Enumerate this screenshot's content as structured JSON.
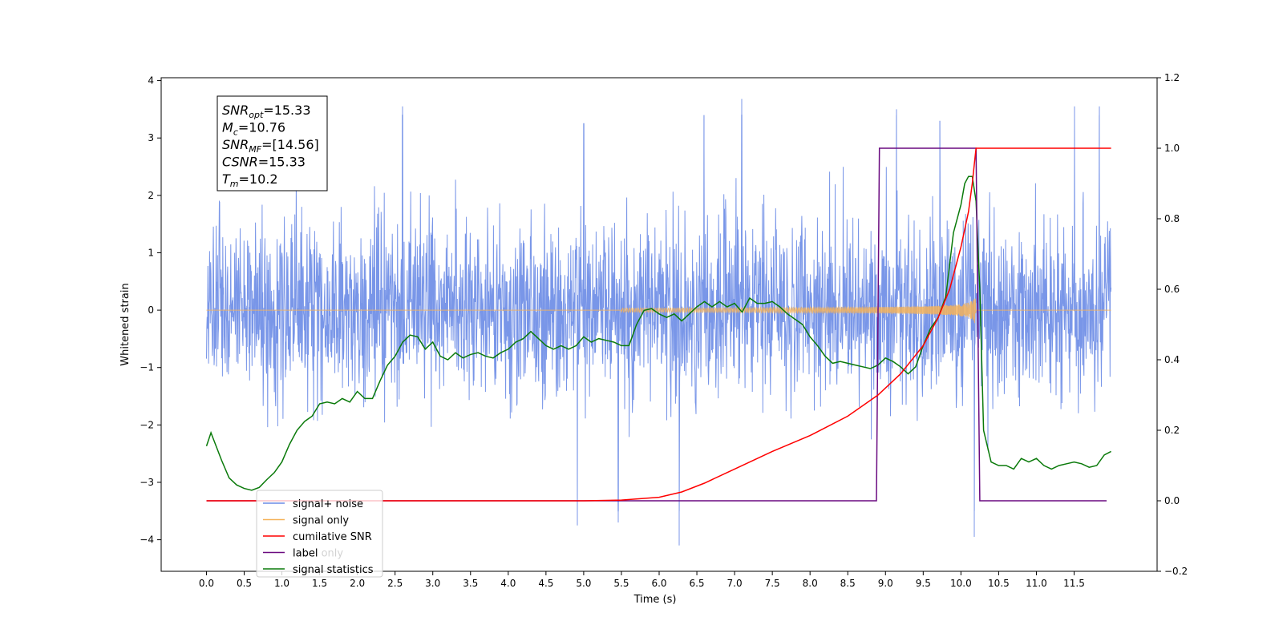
{
  "chart_data": {
    "type": "line",
    "xlabel": "Time (s)",
    "ylabel": "Whitened strain",
    "xlim": [
      -0.6,
      12.6
    ],
    "ylim": [
      -4.55,
      4.05
    ],
    "y2lim": [
      -0.2,
      1.2
    ],
    "x_ticks": [
      "0.0",
      "0.5",
      "1.0",
      "1.5",
      "2.0",
      "2.5",
      "3.0",
      "3.5",
      "4.0",
      "4.5",
      "5.0",
      "5.5",
      "6.0",
      "6.5",
      "7.0",
      "7.5",
      "8.0",
      "8.5",
      "9.0",
      "9.5",
      "10.0",
      "10.5",
      "11.0",
      "11.5"
    ],
    "y_ticks": [
      "4",
      "3",
      "2",
      "1",
      "0",
      "−1",
      "−2",
      "−3",
      "−4"
    ],
    "y2_ticks": [
      "1.2",
      "1.0",
      "0.8",
      "0.6",
      "0.4",
      "0.2",
      "0.0",
      "−0.2"
    ],
    "legend": {
      "placement": "lower-left",
      "entries": [
        "signal+ noise",
        "signal only",
        "cumilative SNR",
        "label",
        "signal statistics"
      ],
      "ghost_entries": [
        "",
        "",
        "",
        "label only",
        "signal statistics"
      ]
    },
    "annotation": {
      "lines": [
        {
          "base": "SNR",
          "sub": "opt",
          "value": "=15.33"
        },
        {
          "base": "M",
          "sub": "c",
          "value": "=10.76"
        },
        {
          "base": "SNR",
          "sub": "MF",
          "value": "=[14.56]"
        },
        {
          "base": "CSNR",
          "sub": "",
          "value": "=15.33"
        },
        {
          "base": "T",
          "sub": "m",
          "value": "=10.2"
        }
      ]
    },
    "colors": {
      "noise": "#6a8be6",
      "signal": "#f5b35a",
      "csnr": "#ff0000",
      "label": "#6a0a80",
      "stats": "#0a7a0a"
    },
    "series": [
      {
        "name": "signal+ noise",
        "axis": "left",
        "noise_std": 0.78,
        "x_range": [
          0.0,
          11.99
        ],
        "spikes": [
          {
            "x": 4.92,
            "y": -3.75
          },
          {
            "x": 5.46,
            "y": -3.7
          },
          {
            "x": 6.27,
            "y": -4.1
          },
          {
            "x": 10.18,
            "y": -3.95
          },
          {
            "x": 7.1,
            "y": 3.68
          },
          {
            "x": 2.6,
            "y": 3.55
          },
          {
            "x": 9.15,
            "y": 3.5
          },
          {
            "x": 11.5,
            "y": 3.55
          },
          {
            "x": 11.83,
            "y": 3.55
          },
          {
            "x": 5.0,
            "y": 3.25
          },
          {
            "x": 6.6,
            "y": 3.4
          },
          {
            "x": 9.72,
            "y": 3.3
          }
        ]
      },
      {
        "name": "signal only",
        "axis": "left",
        "t_merger": 10.2,
        "t_start": 5.5
      },
      {
        "name": "cumilative SNR",
        "axis": "right",
        "points": [
          [
            0.0,
            0.0
          ],
          [
            5.0,
            0.0
          ],
          [
            5.5,
            0.002
          ],
          [
            6.0,
            0.01
          ],
          [
            6.3,
            0.025
          ],
          [
            6.6,
            0.05
          ],
          [
            7.0,
            0.09
          ],
          [
            7.5,
            0.14
          ],
          [
            8.0,
            0.185
          ],
          [
            8.5,
            0.24
          ],
          [
            8.9,
            0.3
          ],
          [
            9.2,
            0.36
          ],
          [
            9.5,
            0.44
          ],
          [
            9.7,
            0.52
          ],
          [
            9.85,
            0.6
          ],
          [
            10.0,
            0.72
          ],
          [
            10.1,
            0.82
          ],
          [
            10.15,
            0.9
          ],
          [
            10.18,
            0.96
          ],
          [
            10.2,
            1.0
          ],
          [
            11.99,
            1.0
          ]
        ]
      },
      {
        "name": "label",
        "axis": "right",
        "points": [
          [
            0.0,
            0.0
          ],
          [
            8.88,
            0.0
          ],
          [
            8.92,
            1.0
          ],
          [
            10.2,
            1.0
          ],
          [
            10.25,
            0.0
          ],
          [
            11.93,
            0.0
          ]
        ]
      },
      {
        "name": "signal statistics",
        "axis": "right",
        "points": [
          [
            0.0,
            0.155
          ],
          [
            0.06,
            0.193
          ],
          [
            0.12,
            0.16
          ],
          [
            0.2,
            0.115
          ],
          [
            0.3,
            0.065
          ],
          [
            0.4,
            0.045
          ],
          [
            0.5,
            0.035
          ],
          [
            0.6,
            0.03
          ],
          [
            0.7,
            0.038
          ],
          [
            0.8,
            0.06
          ],
          [
            0.9,
            0.08
          ],
          [
            1.0,
            0.11
          ],
          [
            1.1,
            0.16
          ],
          [
            1.2,
            0.2
          ],
          [
            1.3,
            0.225
          ],
          [
            1.4,
            0.24
          ],
          [
            1.5,
            0.275
          ],
          [
            1.6,
            0.28
          ],
          [
            1.7,
            0.275
          ],
          [
            1.8,
            0.29
          ],
          [
            1.9,
            0.28
          ],
          [
            2.0,
            0.31
          ],
          [
            2.1,
            0.29
          ],
          [
            2.2,
            0.29
          ],
          [
            2.3,
            0.34
          ],
          [
            2.4,
            0.385
          ],
          [
            2.5,
            0.41
          ],
          [
            2.6,
            0.45
          ],
          [
            2.7,
            0.47
          ],
          [
            2.8,
            0.465
          ],
          [
            2.9,
            0.43
          ],
          [
            3.0,
            0.45
          ],
          [
            3.1,
            0.41
          ],
          [
            3.2,
            0.4
          ],
          [
            3.3,
            0.42
          ],
          [
            3.4,
            0.405
          ],
          [
            3.5,
            0.415
          ],
          [
            3.6,
            0.42
          ],
          [
            3.7,
            0.41
          ],
          [
            3.8,
            0.405
          ],
          [
            3.9,
            0.42
          ],
          [
            4.0,
            0.43
          ],
          [
            4.1,
            0.45
          ],
          [
            4.2,
            0.46
          ],
          [
            4.3,
            0.48
          ],
          [
            4.4,
            0.46
          ],
          [
            4.5,
            0.44
          ],
          [
            4.6,
            0.43
          ],
          [
            4.7,
            0.44
          ],
          [
            4.8,
            0.43
          ],
          [
            4.9,
            0.44
          ],
          [
            5.0,
            0.465
          ],
          [
            5.1,
            0.45
          ],
          [
            5.2,
            0.46
          ],
          [
            5.3,
            0.455
          ],
          [
            5.4,
            0.45
          ],
          [
            5.5,
            0.44
          ],
          [
            5.6,
            0.44
          ],
          [
            5.7,
            0.5
          ],
          [
            5.8,
            0.54
          ],
          [
            5.9,
            0.545
          ],
          [
            6.0,
            0.53
          ],
          [
            6.1,
            0.52
          ],
          [
            6.2,
            0.53
          ],
          [
            6.3,
            0.51
          ],
          [
            6.4,
            0.53
          ],
          [
            6.5,
            0.55
          ],
          [
            6.6,
            0.565
          ],
          [
            6.7,
            0.55
          ],
          [
            6.8,
            0.565
          ],
          [
            6.9,
            0.55
          ],
          [
            7.0,
            0.56
          ],
          [
            7.1,
            0.535
          ],
          [
            7.2,
            0.575
          ],
          [
            7.3,
            0.56
          ],
          [
            7.4,
            0.56
          ],
          [
            7.5,
            0.565
          ],
          [
            7.6,
            0.55
          ],
          [
            7.7,
            0.53
          ],
          [
            7.8,
            0.515
          ],
          [
            7.9,
            0.5
          ],
          [
            8.0,
            0.465
          ],
          [
            8.1,
            0.44
          ],
          [
            8.2,
            0.41
          ],
          [
            8.3,
            0.39
          ],
          [
            8.4,
            0.395
          ],
          [
            8.5,
            0.39
          ],
          [
            8.6,
            0.385
          ],
          [
            8.7,
            0.38
          ],
          [
            8.8,
            0.375
          ],
          [
            8.9,
            0.385
          ],
          [
            9.0,
            0.405
          ],
          [
            9.1,
            0.395
          ],
          [
            9.2,
            0.38
          ],
          [
            9.3,
            0.36
          ],
          [
            9.4,
            0.38
          ],
          [
            9.5,
            0.44
          ],
          [
            9.6,
            0.49
          ],
          [
            9.7,
            0.52
          ],
          [
            9.8,
            0.58
          ],
          [
            9.9,
            0.76
          ],
          [
            10.0,
            0.84
          ],
          [
            10.05,
            0.9
          ],
          [
            10.1,
            0.92
          ],
          [
            10.15,
            0.92
          ],
          [
            10.2,
            0.85
          ],
          [
            10.25,
            0.6
          ],
          [
            10.3,
            0.2
          ],
          [
            10.4,
            0.11
          ],
          [
            10.5,
            0.1
          ],
          [
            10.6,
            0.1
          ],
          [
            10.7,
            0.09
          ],
          [
            10.8,
            0.12
          ],
          [
            10.9,
            0.11
          ],
          [
            11.0,
            0.12
          ],
          [
            11.1,
            0.1
          ],
          [
            11.2,
            0.09
          ],
          [
            11.3,
            0.1
          ],
          [
            11.4,
            0.105
          ],
          [
            11.5,
            0.11
          ],
          [
            11.6,
            0.105
          ],
          [
            11.7,
            0.095
          ],
          [
            11.8,
            0.1
          ],
          [
            11.9,
            0.13
          ],
          [
            11.99,
            0.14
          ]
        ]
      }
    ]
  }
}
